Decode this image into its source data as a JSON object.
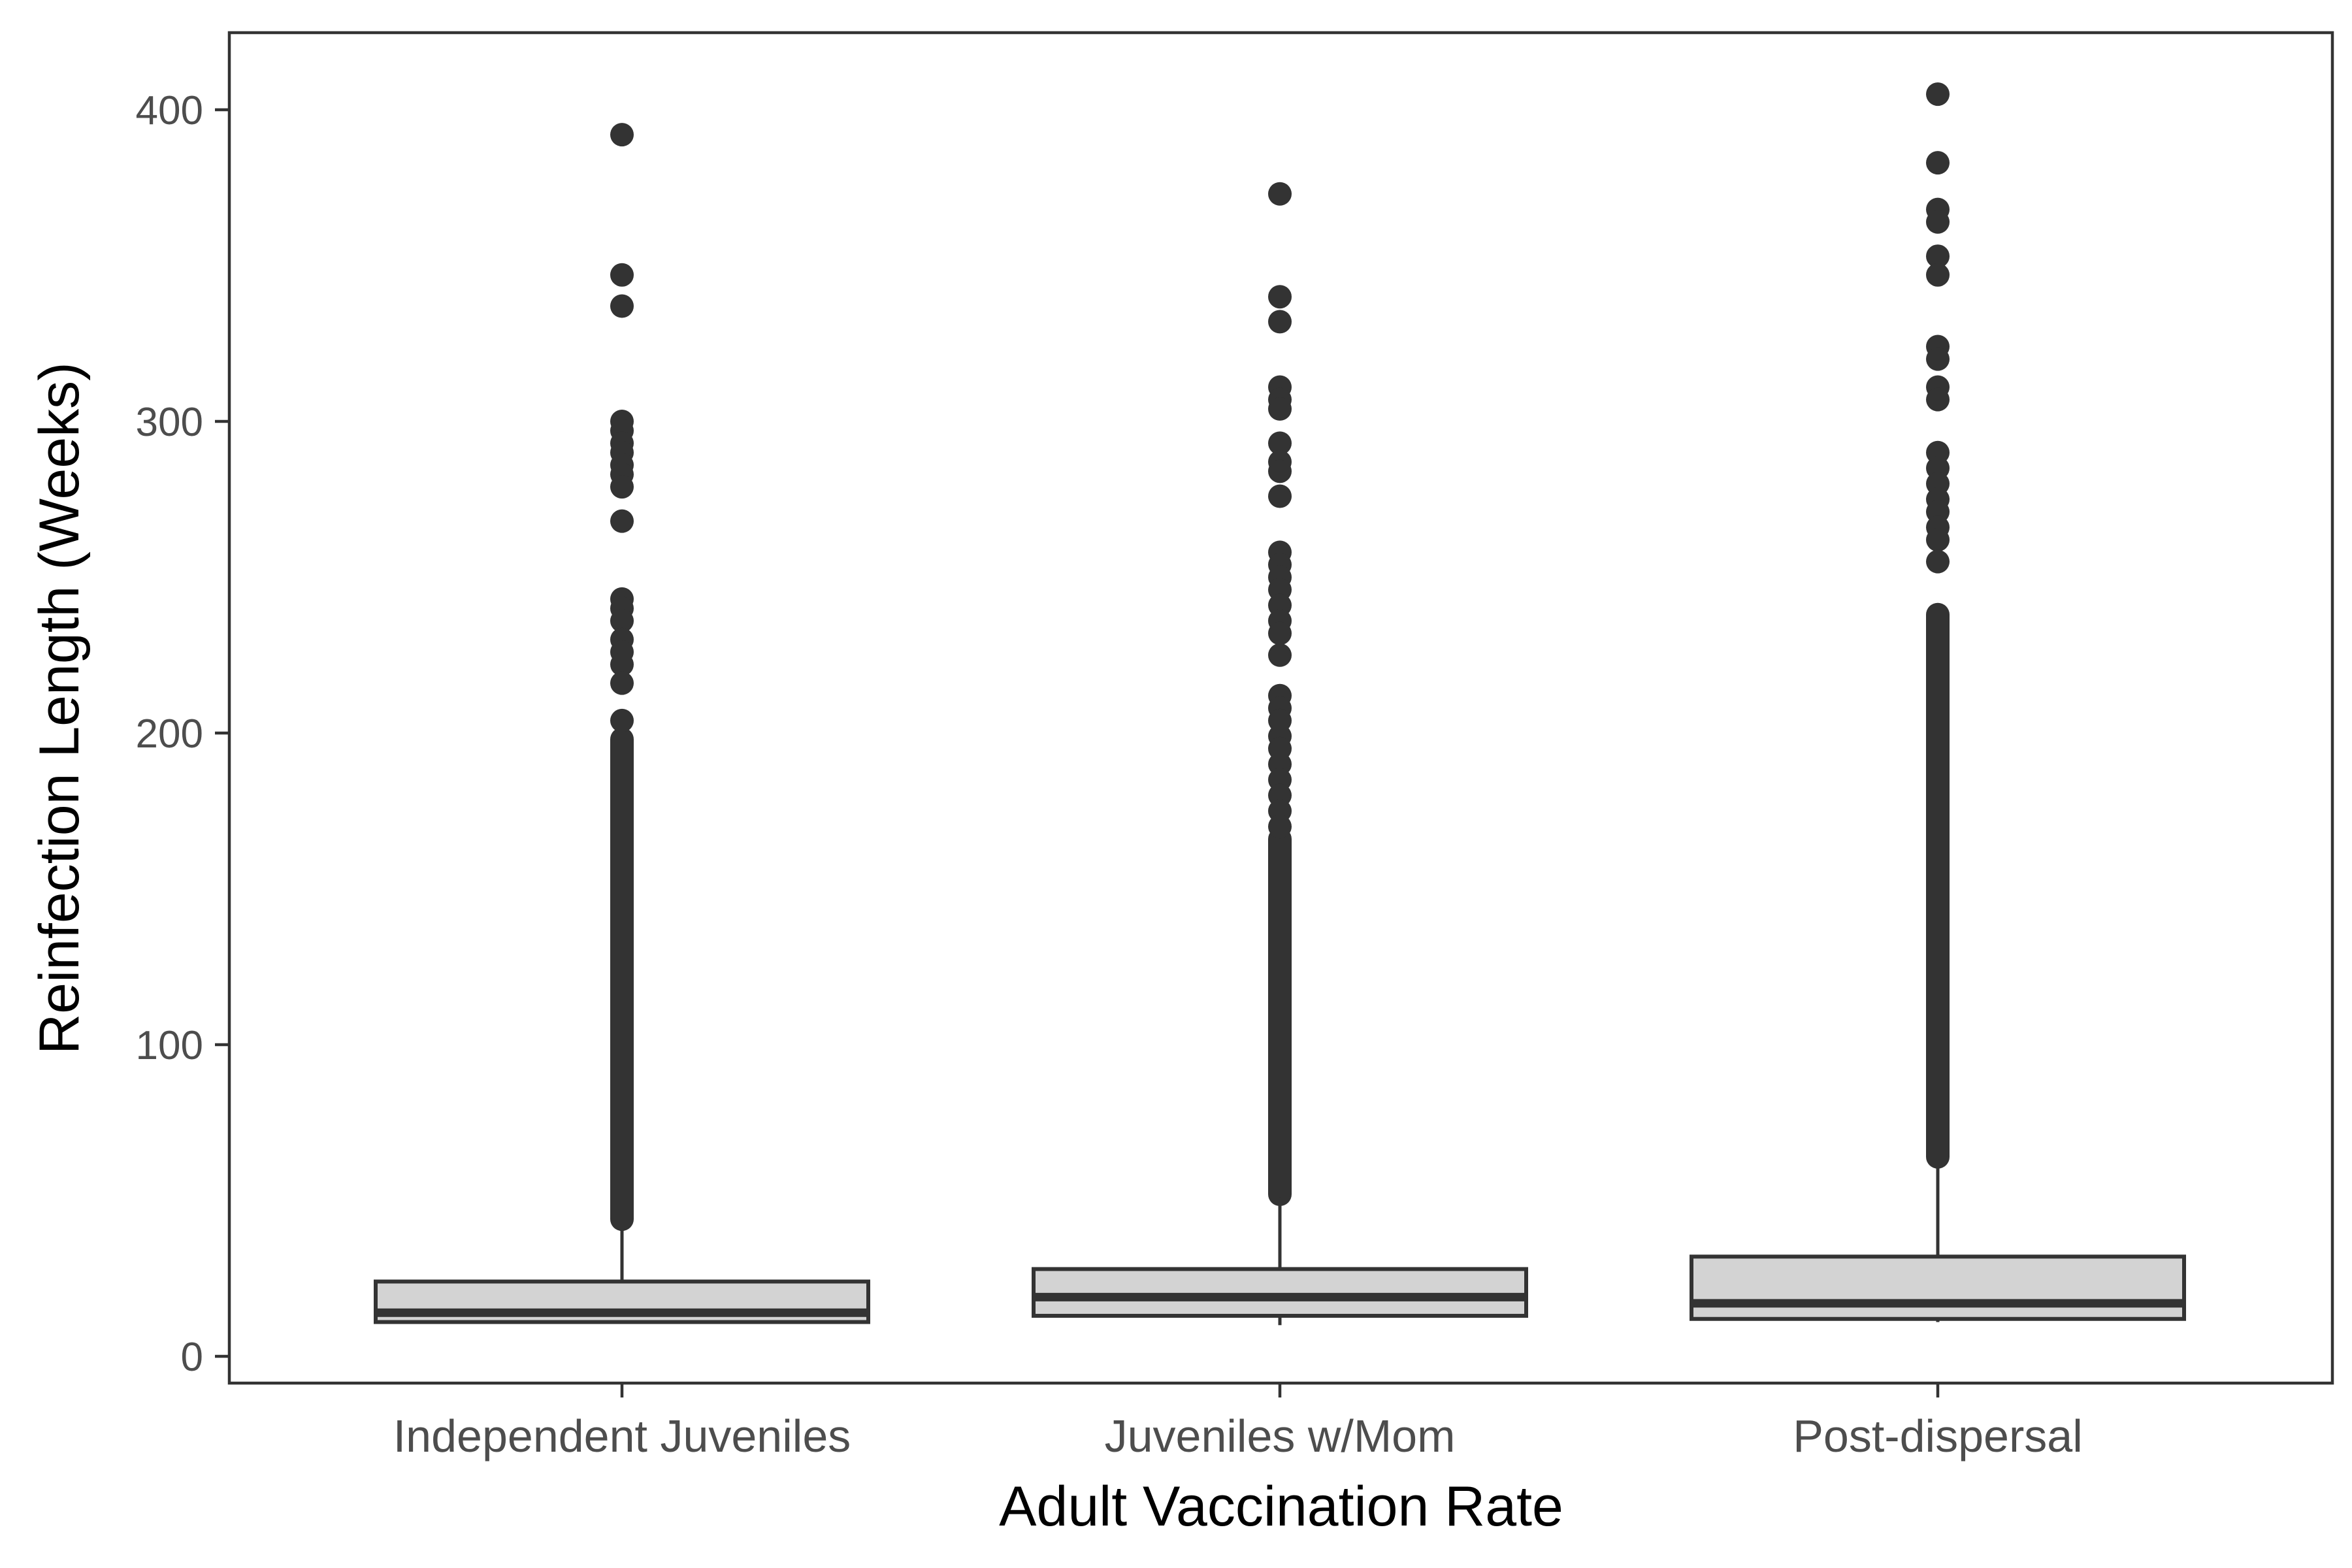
{
  "chart_data": {
    "type": "boxplot",
    "title": "",
    "xlabel": "Adult Vaccination Rate",
    "ylabel": "Reinfection Length (Weeks)",
    "categories": [
      "Independent Juveniles",
      "Juveniles w/Mom",
      "Post-dispersal"
    ],
    "ylim": [
      -10,
      425
    ],
    "yticks": [
      0,
      100,
      200,
      300,
      400
    ],
    "grid": false,
    "legend": "none",
    "colors": {
      "box_fill": "#d3d3d3",
      "stroke": "#333333",
      "points": "#333333",
      "panel_border": "#333333"
    },
    "boxes": [
      {
        "name": "Independent Juveniles",
        "min": 11,
        "q1": 11,
        "median": 14,
        "q3": 24,
        "whisker_high": 43,
        "outlier_band": [
          44,
          198
        ],
        "outliers": [
          392,
          347,
          337,
          300,
          297,
          293,
          290,
          286,
          283,
          279,
          268,
          243,
          240,
          236,
          230,
          226,
          222,
          216,
          204
        ]
      },
      {
        "name": "Juveniles w/Mom",
        "min": 10,
        "q1": 13,
        "median": 19,
        "q3": 28,
        "whisker_high": 51,
        "outlier_band": [
          52,
          166
        ],
        "outliers": [
          373,
          340,
          332,
          311,
          307,
          304,
          293,
          287,
          284,
          276,
          258,
          254,
          250,
          246,
          241,
          236,
          232,
          225,
          212,
          208,
          204,
          199,
          195,
          190,
          185,
          180,
          175,
          170
        ]
      },
      {
        "name": "Post-dispersal",
        "min": 11,
        "q1": 12,
        "median": 17,
        "q3": 32,
        "whisker_high": 63,
        "outlier_band": [
          64,
          238
        ],
        "outliers": [
          405,
          383,
          368,
          364,
          353,
          347,
          324,
          320,
          311,
          307,
          290,
          285,
          280,
          275,
          271,
          266,
          262,
          255
        ]
      }
    ]
  }
}
